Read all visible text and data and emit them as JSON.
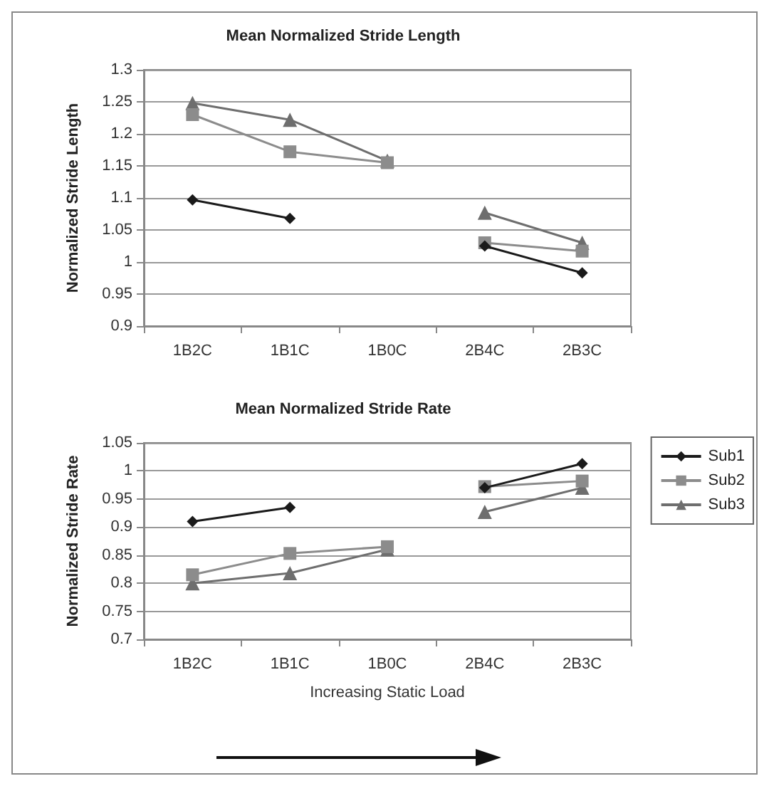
{
  "chart_data": [
    {
      "type": "line",
      "title": "Mean Normalized Stride Length",
      "ylabel": "Normalized Stride Length",
      "categories": [
        "1B2C",
        "1B1C",
        "1B0C",
        "2B4C",
        "2B3C"
      ],
      "series": [
        {
          "color": "#1a1a1a",
          "marker": "diamond",
          "values": [
            1.097,
            1.068,
            null,
            null,
            null
          ]
        },
        {
          "color": "#1a1a1a",
          "marker": "diamond",
          "values": [
            null,
            null,
            null,
            1.025,
            0.983
          ]
        },
        {
          "color": "#8c8c8c",
          "marker": "square",
          "values": [
            1.23,
            1.172,
            1.155,
            null,
            null
          ]
        },
        {
          "color": "#8c8c8c",
          "marker": "square",
          "values": [
            null,
            null,
            null,
            1.03,
            1.017
          ]
        },
        {
          "color": "#6e6e6e",
          "marker": "triangle",
          "values": [
            1.248,
            1.222,
            1.158,
            null,
            null
          ]
        },
        {
          "color": "#6e6e6e",
          "marker": "triangle",
          "values": [
            null,
            null,
            null,
            1.077,
            1.03
          ]
        }
      ],
      "ylim": [
        0.9,
        1.3
      ],
      "yticks": [
        0.9,
        0.95,
        1,
        1.05,
        1.1,
        1.15,
        1.2,
        1.25,
        1.3
      ],
      "grid": "y",
      "legend": false
    },
    {
      "type": "line",
      "title": "Mean Normalized Stride Rate",
      "ylabel": "Normalized Stride Rate",
      "xlabel": "Increasing Static Load",
      "categories": [
        "1B2C",
        "1B1C",
        "1B0C",
        "2B4C",
        "2B3C"
      ],
      "series": [
        {
          "name": "Sub1",
          "color": "#1a1a1a",
          "marker": "diamond",
          "values": [
            0.91,
            0.935,
            null,
            null,
            null
          ]
        },
        {
          "color": "#1a1a1a",
          "marker": "diamond",
          "values": [
            null,
            null,
            null,
            0.97,
            1.013
          ]
        },
        {
          "name": "Sub2",
          "color": "#8c8c8c",
          "marker": "square",
          "values": [
            0.815,
            0.853,
            0.865,
            null,
            null
          ]
        },
        {
          "color": "#8c8c8c",
          "marker": "square",
          "values": [
            null,
            null,
            null,
            0.972,
            0.982
          ]
        },
        {
          "name": "Sub3",
          "color": "#6e6e6e",
          "marker": "triangle",
          "values": [
            0.8,
            0.818,
            0.86,
            null,
            null
          ]
        },
        {
          "color": "#6e6e6e",
          "marker": "triangle",
          "values": [
            null,
            null,
            null,
            0.927,
            0.97
          ]
        }
      ],
      "ylim": [
        0.7,
        1.05
      ],
      "yticks": [
        0.7,
        0.75,
        0.8,
        0.85,
        0.9,
        0.95,
        1,
        1.05
      ],
      "grid": "y",
      "legend": "right"
    }
  ]
}
